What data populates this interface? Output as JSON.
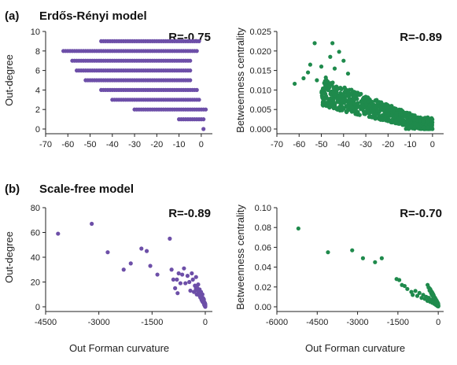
{
  "panels": [
    {
      "label": "(a)",
      "title": "Erdős-Rényi model"
    },
    {
      "label": "(b)",
      "title": "Scale-free model"
    }
  ],
  "shared_xlabel": "Out Forman curvature",
  "colors": {
    "purple": "#6d4fa8",
    "green": "#1f8a4c"
  },
  "chart_data": [
    {
      "type": "scatter",
      "ylabel": "Out-degree",
      "xlim": [
        -70,
        5
      ],
      "ylim": [
        0,
        10
      ],
      "xticks": [
        -70,
        -60,
        -50,
        -40,
        -30,
        -20,
        -10,
        0
      ],
      "yticks": [
        0,
        2,
        4,
        6,
        8,
        10
      ],
      "ytick_labels": [
        "0",
        "2",
        "4",
        "6",
        "8",
        "10"
      ],
      "annotation": "R=-0.75",
      "color": "purple",
      "rows": [
        {
          "y": 9,
          "xmin": -45,
          "xmax": -1
        },
        {
          "y": 8,
          "xmin": -62,
          "xmax": -2
        },
        {
          "y": 7,
          "xmin": -58,
          "xmax": -5
        },
        {
          "y": 6,
          "xmin": -56,
          "xmax": -5
        },
        {
          "y": 5,
          "xmin": -52,
          "xmax": -5
        },
        {
          "y": 4,
          "xmin": -45,
          "xmax": -2
        },
        {
          "y": 3,
          "xmin": -40,
          "xmax": -1
        },
        {
          "y": 2,
          "xmin": -30,
          "xmax": 2
        },
        {
          "y": 1,
          "xmin": -10,
          "xmax": 1
        },
        {
          "y": 0,
          "xmin": 1,
          "xmax": 1
        }
      ]
    },
    {
      "type": "scatter",
      "ylabel": "Betweenness centrality",
      "xlim": [
        -70,
        5
      ],
      "ylim": [
        0,
        0.025
      ],
      "xticks": [
        -70,
        -60,
        -50,
        -40,
        -30,
        -20,
        -10,
        0
      ],
      "yticks": [
        0,
        0.005,
        0.01,
        0.015,
        0.02,
        0.025
      ],
      "ytick_labels": [
        "0.000",
        "0.005",
        "0.010",
        "0.015",
        "0.020",
        "0.025"
      ],
      "annotation": "R=-0.89",
      "color": "green",
      "outliers": [
        [
          -62,
          0.0116
        ],
        [
          -56,
          0.0145
        ],
        [
          -55,
          0.0165
        ],
        [
          -53,
          0.022
        ],
        [
          -50,
          0.016
        ],
        [
          -48,
          0.0132
        ],
        [
          -46,
          0.0185
        ],
        [
          -45,
          0.022
        ],
        [
          -44,
          0.0155
        ],
        [
          -42,
          0.0198
        ],
        [
          -40,
          0.0175
        ],
        [
          -38,
          0.0142
        ],
        [
          -58,
          0.013
        ],
        [
          -52,
          0.0125
        ]
      ],
      "trend": {
        "slope": -0.00018,
        "intercept": 0.0005,
        "xmin": -50,
        "xmax": 0
      }
    },
    {
      "type": "scatter",
      "ylabel": "Out-degree",
      "xlim": [
        -4500,
        200
      ],
      "ylim": [
        0,
        80
      ],
      "xticks": [
        -4500,
        -3000,
        -1500,
        0
      ],
      "yticks": [
        0,
        20,
        40,
        60,
        80
      ],
      "ytick_labels": [
        "0",
        "20",
        "40",
        "60",
        "80"
      ],
      "annotation": "R=-0.89",
      "color": "purple",
      "points": [
        [
          -4150,
          59
        ],
        [
          -3200,
          67
        ],
        [
          -2750,
          44
        ],
        [
          -2300,
          30
        ],
        [
          -2100,
          35
        ],
        [
          -1800,
          47
        ],
        [
          -1650,
          45
        ],
        [
          -1550,
          33
        ],
        [
          -1350,
          26
        ],
        [
          -1000,
          55
        ],
        [
          -950,
          30
        ],
        [
          -900,
          22
        ],
        [
          -850,
          15
        ],
        [
          -800,
          22
        ],
        [
          -780,
          11
        ],
        [
          -750,
          27
        ],
        [
          -700,
          19
        ],
        [
          -650,
          26
        ],
        [
          -600,
          31
        ],
        [
          -560,
          19
        ],
        [
          -500,
          25
        ],
        [
          -450,
          20
        ],
        [
          -420,
          13
        ],
        [
          -380,
          27
        ],
        [
          -350,
          22
        ],
        [
          -320,
          12
        ],
        [
          -290,
          17
        ],
        [
          -260,
          24
        ],
        [
          -240,
          10
        ],
        [
          -220,
          15
        ],
        [
          -200,
          18
        ],
        [
          -180,
          11
        ],
        [
          -160,
          14
        ],
        [
          -140,
          8
        ],
        [
          -120,
          12
        ],
        [
          -100,
          9
        ],
        [
          -90,
          6
        ],
        [
          -80,
          10
        ],
        [
          -70,
          5
        ],
        [
          -60,
          7
        ],
        [
          -50,
          4
        ],
        [
          -40,
          6
        ],
        [
          -30,
          3
        ],
        [
          -20,
          2
        ],
        [
          -10,
          1
        ],
        [
          0,
          0
        ]
      ]
    },
    {
      "type": "scatter",
      "ylabel": "Betweenness centrality",
      "xlim": [
        -6000,
        200
      ],
      "ylim": [
        0,
        0.1
      ],
      "xticks": [
        -6000,
        -4500,
        -3000,
        -1500,
        0
      ],
      "yticks": [
        0,
        0.02,
        0.04,
        0.06,
        0.08,
        0.1
      ],
      "ytick_labels": [
        "0.00",
        "0.02",
        "0.04",
        "0.06",
        "0.08",
        "0.10"
      ],
      "annotation": "R=-0.70",
      "color": "green",
      "points": [
        [
          -5200,
          0.079
        ],
        [
          -4100,
          0.055
        ],
        [
          -3200,
          0.057
        ],
        [
          -2800,
          0.049
        ],
        [
          -2350,
          0.045
        ],
        [
          -2100,
          0.049
        ],
        [
          -1550,
          0.028
        ],
        [
          -1450,
          0.027
        ],
        [
          -1350,
          0.022
        ],
        [
          -1250,
          0.021
        ],
        [
          -1150,
          0.018
        ],
        [
          -1000,
          0.015
        ],
        [
          -950,
          0.012
        ],
        [
          -850,
          0.016
        ],
        [
          -780,
          0.011
        ],
        [
          -700,
          0.014
        ],
        [
          -620,
          0.009
        ],
        [
          -560,
          0.012
        ],
        [
          -500,
          0.008
        ],
        [
          -450,
          0.01
        ],
        [
          -400,
          0.006
        ],
        [
          -350,
          0.009
        ],
        [
          -300,
          0.005
        ],
        [
          -260,
          0.007
        ],
        [
          -220,
          0.004
        ],
        [
          -180,
          0.006
        ],
        [
          -150,
          0.003
        ],
        [
          -120,
          0.005
        ],
        [
          -90,
          0.002
        ],
        [
          -60,
          0.003
        ],
        [
          -40,
          0.001
        ],
        [
          -20,
          0.002
        ],
        [
          0,
          0.0005
        ]
      ]
    }
  ]
}
